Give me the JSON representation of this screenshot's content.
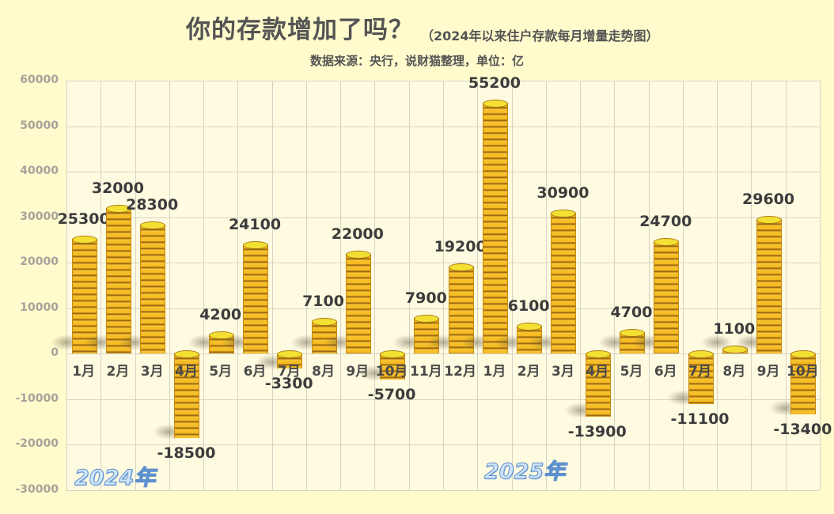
{
  "header": {
    "title": "你的存款增加了吗？",
    "subtitle": "（2024年以来住户存款每月增量走势图）",
    "source": "数据来源：央行，说财猫整理，单位：亿"
  },
  "year_labels": [
    "2024年",
    "2025年"
  ],
  "colors": {
    "background": "#fffbcc",
    "plot_bg": "#fffbe0",
    "bar": "#f5b81f",
    "bar_stripe": "#8a5a10",
    "bar_top": "#f4e033",
    "label": "#3c3c3c",
    "axis_tick": "#a6a39a",
    "year_label": "#5c8fcc"
  },
  "chart_data": {
    "type": "bar",
    "title": "你的存款增加了吗？",
    "subtitle": "（2024年以来住户存款每月增量走势图）",
    "note": "数据来源：央行，说财猫整理，单位：亿",
    "categories": [
      "1月",
      "2月",
      "3月",
      "4月",
      "5月",
      "6月",
      "7月",
      "8月",
      "9月",
      "10月",
      "11月",
      "12月",
      "1月",
      "2月",
      "3月",
      "4月",
      "5月",
      "6月",
      "7月",
      "8月",
      "9月",
      "10月"
    ],
    "category_years": [
      "2024",
      "2024",
      "2024",
      "2024",
      "2024",
      "2024",
      "2024",
      "2024",
      "2024",
      "2024",
      "2024",
      "2024",
      "2025",
      "2025",
      "2025",
      "2025",
      "2025",
      "2025",
      "2025",
      "2025",
      "2025",
      "2025"
    ],
    "values": [
      25300,
      32000,
      28300,
      -18500,
      4200,
      24100,
      -3300,
      7100,
      22000,
      -5700,
      7900,
      19200,
      55200,
      6100,
      30900,
      -13900,
      4700,
      24700,
      -11100,
      1100,
      29600,
      -13400
    ],
    "value_labels": [
      "25300",
      "32000",
      "28300",
      "-18500",
      "4200",
      "24100",
      "-3300",
      "7100",
      "22000",
      "-5700",
      "7900",
      "19200",
      "55200",
      "6100",
      "30900",
      "-13900",
      "4700",
      "24700",
      "-11100",
      "1100",
      "29600",
      "-13400"
    ],
    "xlabel": "",
    "ylabel": "亿",
    "ylim": [
      -30000,
      60000
    ],
    "yticks": [
      "60000",
      "50000",
      "40000",
      "30000",
      "20000",
      "10000",
      "0",
      "-10000",
      "-20000",
      "-30000"
    ],
    "annotations": [
      "2024年",
      "2025年"
    ],
    "grid": true,
    "legend": "none"
  }
}
